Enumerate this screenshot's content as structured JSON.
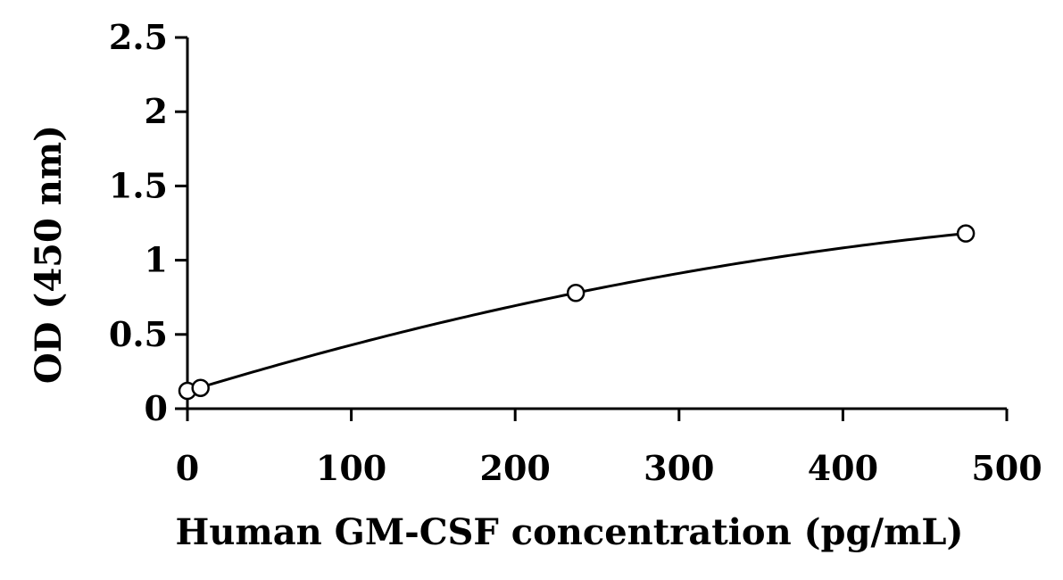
{
  "chart_data": {
    "type": "scatter",
    "title": "",
    "xlabel": "Human GM-CSF concentration (pg/mL)",
    "ylabel": "OD (450 nm)",
    "xlim": [
      0,
      500
    ],
    "ylim": [
      0,
      2.5
    ],
    "x_ticks": [
      "0",
      "100",
      "200",
      "300",
      "400",
      "500"
    ],
    "y_ticks": [
      "0",
      "0.5",
      "1",
      "1.5",
      "2",
      "2.5"
    ],
    "grid": false,
    "legend": "none",
    "series": [
      {
        "points": [
          {
            "x": 0,
            "y": 0.12
          },
          {
            "x": 8,
            "y": 0.14
          },
          {
            "x": 237,
            "y": 0.78
          },
          {
            "x": 475,
            "y": 1.18
          }
        ],
        "marker": "open-circle",
        "line": "smooth-fit",
        "color": "#000000"
      }
    ]
  }
}
